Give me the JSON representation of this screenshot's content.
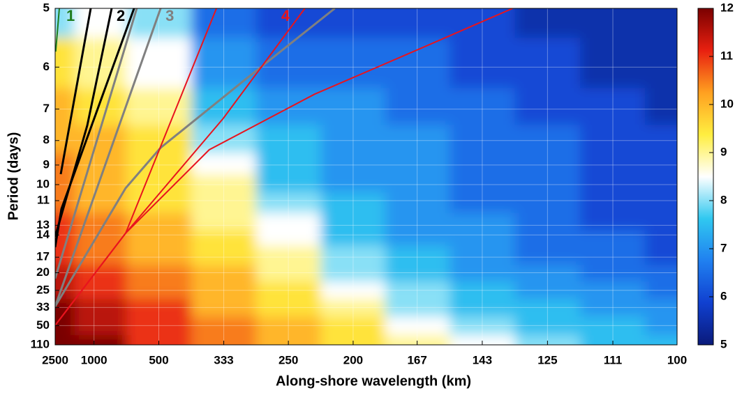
{
  "chart_data": {
    "type": "contour",
    "xlabel": "Along-shore wavelength (km)",
    "ylabel": "Period (days)",
    "xscale": "reciprocal",
    "yscale": "reciprocal",
    "x": [
      2500,
      1000,
      500,
      333,
      250,
      200,
      167,
      143,
      125,
      111,
      100
    ],
    "y": [
      5,
      6,
      7,
      8,
      9,
      10,
      11,
      13,
      14,
      17,
      20,
      25,
      33,
      50,
      110
    ],
    "z": [
      [
        8,
        8.5,
        8,
        6.5,
        6,
        6,
        6,
        6,
        5.5,
        5.5,
        5.5
      ],
      [
        9.5,
        9,
        8.5,
        7,
        6.5,
        6.5,
        6.5,
        6,
        6,
        5.5,
        5.5
      ],
      [
        10,
        9.5,
        9,
        7.5,
        7,
        7,
        6.5,
        6.5,
        6,
        6,
        5.5
      ],
      [
        10,
        10,
        9.5,
        8,
        7.5,
        7,
        7,
        6.5,
        6.5,
        6,
        6
      ],
      [
        10.5,
        10,
        9.5,
        8.5,
        7.5,
        7,
        7,
        6.5,
        6.5,
        6,
        6
      ],
      [
        10.5,
        10,
        9.5,
        9,
        7.5,
        7,
        7,
        6.5,
        6.5,
        6,
        6
      ],
      [
        10.5,
        10,
        9.5,
        9,
        8,
        7.5,
        7,
        6.5,
        6.5,
        6,
        6
      ],
      [
        11,
        10.5,
        10,
        9,
        8.5,
        7.5,
        7,
        7,
        6.5,
        6,
        6
      ],
      [
        11,
        10.5,
        10,
        9.5,
        8.5,
        7.5,
        7,
        7,
        6.5,
        6.5,
        6
      ],
      [
        11,
        10.5,
        10,
        9.5,
        9,
        8,
        7.5,
        7,
        6.5,
        6.5,
        6
      ],
      [
        11.5,
        11,
        10.5,
        10,
        9,
        8,
        7.5,
        7,
        7,
        6.5,
        6.5
      ],
      [
        11.5,
        11,
        10.5,
        10,
        9.5,
        8.5,
        8,
        7.5,
        7,
        7,
        6.5
      ],
      [
        12,
        11.5,
        11,
        10,
        9.5,
        9,
        8,
        7.5,
        7.5,
        7,
        7
      ],
      [
        12,
        11.5,
        11,
        10.5,
        10,
        9.5,
        8.5,
        8,
        7.5,
        7.5,
        7
      ],
      [
        12,
        12,
        11,
        10.5,
        10,
        9.5,
        9,
        8.5,
        8,
        7.5,
        7.5
      ]
    ],
    "xlim": [
      2500,
      100
    ],
    "ylim": [
      5,
      110
    ],
    "xticks": [
      2500,
      1000,
      500,
      333,
      250,
      200,
      167,
      143,
      125,
      111,
      100
    ],
    "yticks": [
      5,
      6,
      7,
      8,
      9,
      10,
      11,
      13,
      14,
      17,
      20,
      25,
      33,
      50,
      110
    ],
    "grid": true,
    "colormap": [
      "#0a1a7a",
      "#1040d0",
      "#2080f0",
      "#30c8f0",
      "#ffffff",
      "#ffee40",
      "#ffa020",
      "#e82010",
      "#7a0000"
    ],
    "clim": [
      5,
      12
    ],
    "cticks": [
      5,
      6,
      7,
      8,
      9,
      10,
      11,
      12
    ],
    "curves": [
      {
        "label": "1",
        "color": "#1e7d1e",
        "lines": [
          {
            "x": [
              2450,
              2150
            ],
            "y": [
              5.7,
              5
            ]
          }
        ]
      },
      {
        "label": "2",
        "color": "#000000",
        "lines": [
          {
            "x": [
              2057,
              1053
            ],
            "y": [
              9.44,
              5
            ]
          },
          {
            "x": [
              2500,
              1116,
              786
            ],
            "y": [
              14.2,
              7.49,
              5
            ]
          },
          {
            "x": [
              2500,
              2012,
              618
            ],
            "y": [
              15.5,
              11.6,
              5
            ]
          }
        ]
      },
      {
        "label": "3",
        "color": "#808080",
        "lines": [
          {
            "x": [
              2500,
              602
            ],
            "y": [
              21.4,
              5
            ]
          },
          {
            "x": [
              2500,
              493
            ],
            "y": [
              32.4,
              5
            ]
          },
          {
            "x": [
              2500,
              672,
              493,
              301,
              212
            ],
            "y": [
              32.4,
              10.2,
              8.27,
              6.28,
              5
            ]
          }
        ]
      },
      {
        "label": "4",
        "color": "#e8141e",
        "lines": [
          {
            "x": [
              2500,
              672,
              346
            ],
            "y": [
              49.6,
              13.8,
              5
            ]
          },
          {
            "x": [
              2500,
              672,
              334,
              235
            ],
            "y": [
              49.6,
              13.8,
              7.27,
              5
            ]
          },
          {
            "x": [
              2500,
              672,
              360,
              227,
              166,
              134
            ],
            "y": [
              49.6,
              13.8,
              8.35,
              6.61,
              5.65,
              5
            ]
          }
        ]
      }
    ]
  }
}
